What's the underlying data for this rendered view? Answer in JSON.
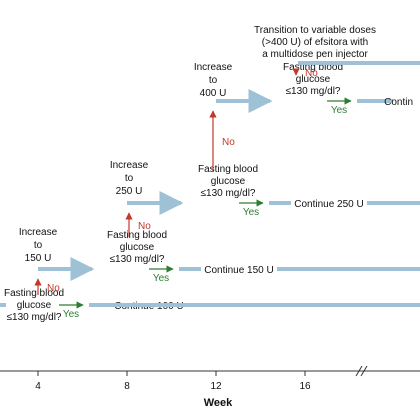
{
  "colors": {
    "path": "#9ec1d6",
    "yes": "#2e7d32",
    "no": "#c0392b",
    "axis": "#333333",
    "text": "#111111"
  },
  "chart_data": {
    "type": "diagram-timeline",
    "xlabel": "Week",
    "x_ticks": [
      "4",
      "8",
      "12",
      "16"
    ],
    "axis_break": true,
    "steps": [
      {
        "dose": "100 U",
        "week_start": 0,
        "check": [
          "Fasting blood",
          "glucose",
          "≤130 mg/dl?"
        ],
        "continue_label": "Continue 100 U",
        "increase_label": [
          "Increase",
          "to",
          "150 U"
        ]
      },
      {
        "dose": "150 U",
        "week_start": 4,
        "check": [
          "Fasting blood",
          "glucose",
          "≤130 mg/dl?"
        ],
        "continue_label": "Continue 150 U",
        "increase_label": [
          "Increase",
          "to",
          "250 U"
        ]
      },
      {
        "dose": "250 U",
        "week_start": 8,
        "check": [
          "Fasting blood",
          "glucose",
          "≤130 mg/dl?"
        ],
        "continue_label": "Continue 250 U",
        "increase_label": [
          "Increase",
          "to",
          "400 U"
        ]
      },
      {
        "dose": "400 U",
        "week_start": 12,
        "check": [
          "Fasting blood",
          "glucose",
          "≤130 mg/dl?"
        ],
        "continue_label": "Contin",
        "increase_label": [
          "Transition to variable doses",
          "(>400 U) of efsitora with",
          "a multidose pen injector"
        ]
      }
    ],
    "yes_label": "Yes",
    "no_label": "No"
  }
}
